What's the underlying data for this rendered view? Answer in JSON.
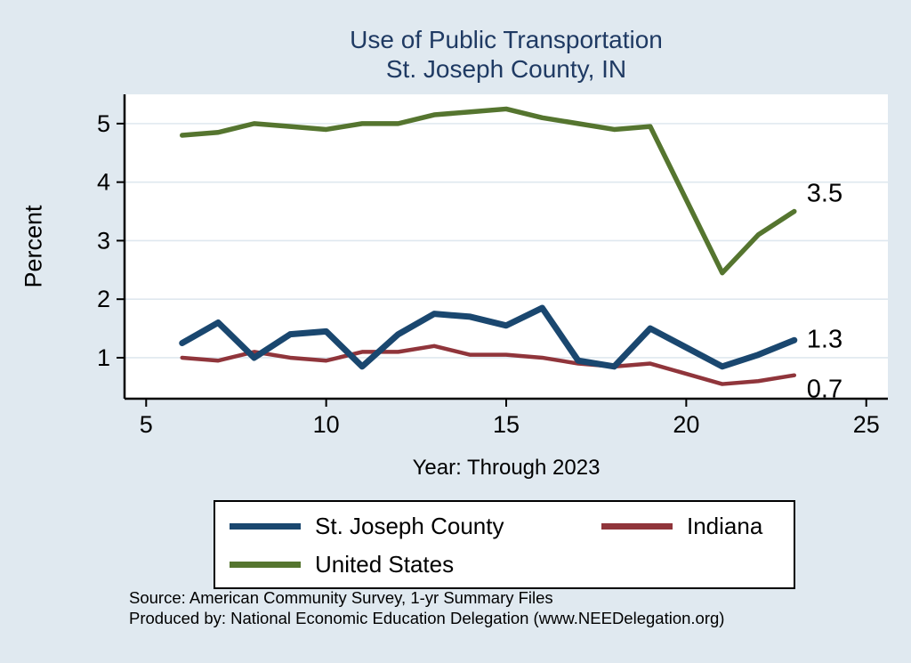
{
  "chart_data": {
    "type": "line",
    "title_line1": "Use of Public Transportation",
    "title_line2": "St. Joseph County, IN",
    "ylabel": "Percent",
    "xlabel": "Year: Through 2023",
    "xlim": [
      4.4,
      25.6
    ],
    "ylim": [
      0.3,
      5.5
    ],
    "x_ticks": [
      5,
      10,
      15,
      20,
      25
    ],
    "y_ticks": [
      1,
      2,
      3,
      4,
      5
    ],
    "x": [
      6,
      7,
      8,
      9,
      10,
      11,
      12,
      13,
      14,
      15,
      16,
      17,
      18,
      19,
      21,
      22,
      23
    ],
    "series": [
      {
        "name": "St. Joseph County",
        "color": "#1a476f",
        "end_label": "1.3",
        "values": [
          1.25,
          1.6,
          1.0,
          1.4,
          1.45,
          0.85,
          1.4,
          1.75,
          1.7,
          1.55,
          1.85,
          0.95,
          0.85,
          1.5,
          0.85,
          1.05,
          1.3
        ]
      },
      {
        "name": "Indiana",
        "color": "#90353b",
        "end_label": "0.7",
        "values": [
          1.0,
          0.95,
          1.1,
          1.0,
          0.95,
          1.1,
          1.1,
          1.2,
          1.05,
          1.05,
          1.0,
          0.9,
          0.85,
          0.9,
          0.55,
          0.6,
          0.7
        ]
      },
      {
        "name": "United States",
        "color": "#55752f",
        "end_label": "3.5",
        "values": [
          4.8,
          4.85,
          5.0,
          4.95,
          4.9,
          5.0,
          5.0,
          5.15,
          5.2,
          5.25,
          5.1,
          5.0,
          4.9,
          4.95,
          2.45,
          3.1,
          3.5
        ]
      }
    ],
    "legend_position": "bottom",
    "grid": true,
    "source_line1": "Source: American Community Survey, 1-yr Summary Files",
    "source_line2": "Produced by: National Economic Education Delegation (www.NEEDelegation.org)",
    "colors": {
      "background": "#e0e9f0",
      "plot_background": "#ffffff",
      "grid": "#dfe8ef",
      "axis": "#000000",
      "title": "#1f3a63"
    }
  }
}
